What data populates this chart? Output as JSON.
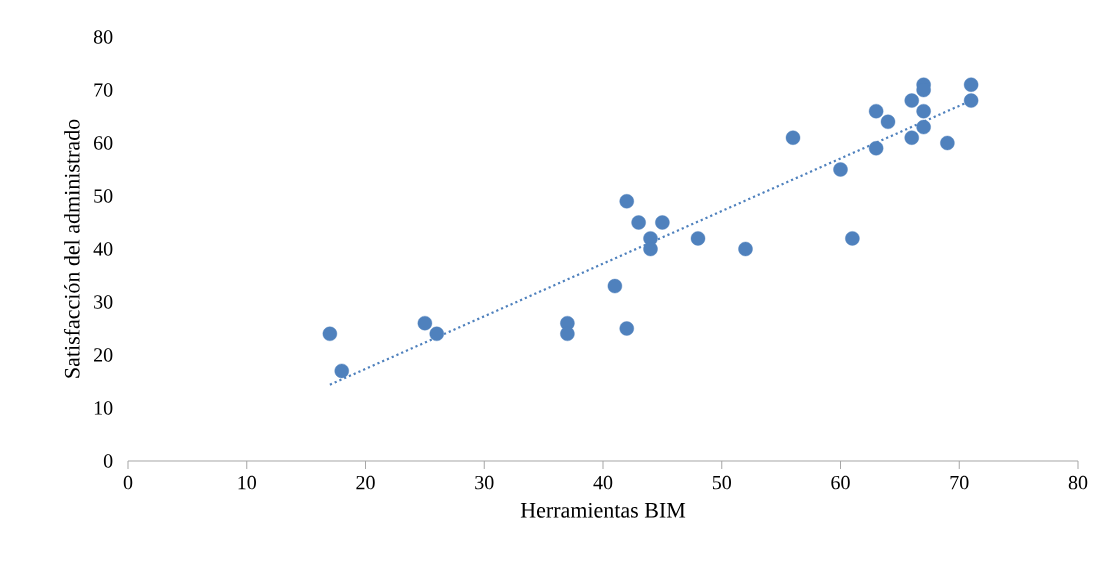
{
  "chart_data": {
    "type": "scatter",
    "xlabel": "Herramientas BIM",
    "ylabel": "Satisfacción del administrado",
    "xlim": [
      0,
      80
    ],
    "ylim": [
      0,
      80
    ],
    "xticks": [
      0,
      10,
      20,
      30,
      40,
      50,
      60,
      70,
      80
    ],
    "yticks": [
      0,
      10,
      20,
      30,
      40,
      50,
      60,
      70,
      80
    ],
    "grid": false,
    "legend": false,
    "series": [
      {
        "color": "#4f81bd",
        "marker": "circle",
        "x": [
          17,
          18,
          25,
          26,
          37,
          37,
          41,
          42,
          42,
          43,
          44,
          44,
          45,
          48,
          52,
          56,
          60,
          61,
          63,
          63,
          64,
          66,
          66,
          67,
          67,
          67,
          67,
          69,
          71,
          71
        ],
        "values": [
          24,
          17,
          26,
          24,
          26,
          24,
          33,
          49,
          25,
          45,
          42,
          40,
          45,
          42,
          40,
          61,
          55,
          42,
          66,
          59,
          64,
          68,
          61,
          71,
          70,
          66,
          63,
          60,
          71,
          68
        ]
      },
      {
        "type": "line",
        "color": "#4f81bd",
        "marker": "none",
        "line_style": "dotted",
        "x": [
          17,
          71
        ],
        "values": [
          14.4,
          68
        ]
      }
    ]
  }
}
